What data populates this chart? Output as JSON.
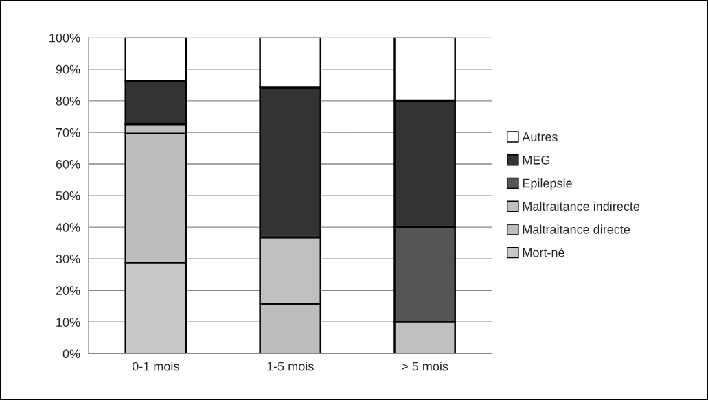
{
  "chart_data": {
    "type": "bar",
    "stacked": true,
    "categories": [
      "0-1 mois",
      "1-5 mois",
      "> 5 mois"
    ],
    "series": [
      {
        "name": "Mort-né",
        "color": "#c8c8c8",
        "values": [
          28.7,
          0,
          0
        ]
      },
      {
        "name": "Maltraitance directe",
        "color": "#bdbdbd",
        "values": [
          40.9,
          15.8,
          0
        ]
      },
      {
        "name": "Maltraitance indirecte",
        "color": "#c0c0c0",
        "values": [
          3.0,
          21.0,
          10
        ]
      },
      {
        "name": "Epilepsie",
        "color": "#555555",
        "values": [
          0,
          0,
          30
        ]
      },
      {
        "name": "MEG",
        "color": "#333333",
        "values": [
          13.7,
          47.4,
          40
        ]
      },
      {
        "name": "Autres",
        "color": "#ffffff",
        "values": [
          13.7,
          15.8,
          20
        ]
      }
    ],
    "ylim": [
      0,
      100
    ],
    "yticks": [
      {
        "value": 0,
        "label": "0%"
      },
      {
        "value": 10,
        "label": "10%"
      },
      {
        "value": 20,
        "label": "20%"
      },
      {
        "value": 30,
        "label": "30%"
      },
      {
        "value": 40,
        "label": "40%"
      },
      {
        "value": 50,
        "label": "50%"
      },
      {
        "value": 60,
        "label": "60%"
      },
      {
        "value": 70,
        "label": "70%"
      },
      {
        "value": 80,
        "label": "80%"
      },
      {
        "value": 90,
        "label": "90%"
      },
      {
        "value": 100,
        "label": "100%"
      }
    ],
    "grid": "y",
    "legend": "right"
  }
}
